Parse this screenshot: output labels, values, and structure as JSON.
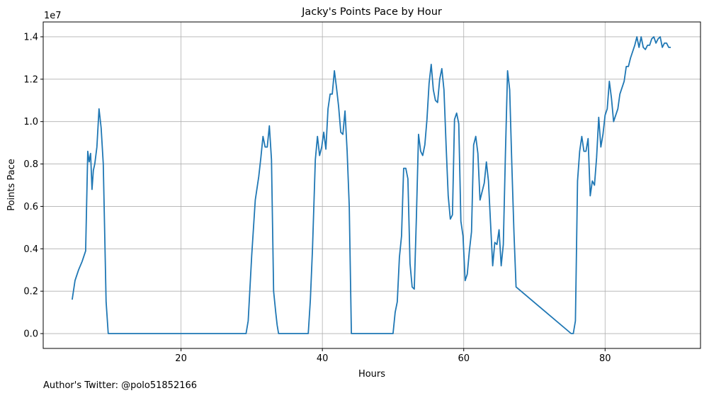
{
  "chart_data": {
    "type": "line",
    "title": "Jacky's Points Pace by Hour",
    "xlabel": "Hours",
    "ylabel": "Points Pace",
    "y_scale_label": "1e7",
    "xlim": [
      0.5,
      93.5
    ],
    "ylim": [
      -0.07,
      1.47
    ],
    "x_ticks": [
      20,
      40,
      60,
      80
    ],
    "x_tick_labels": [
      "20",
      "40",
      "60",
      "80"
    ],
    "y_ticks": [
      0.0,
      0.2,
      0.4,
      0.6,
      0.8,
      1.0,
      1.2,
      1.4
    ],
    "y_tick_labels": [
      "0.0",
      "0.2",
      "0.4",
      "0.6",
      "0.8",
      "1.0",
      "1.2",
      "1.4"
    ],
    "grid": true,
    "line_color": "#1f77b4",
    "series": [
      {
        "name": "",
        "x": [
          4.6,
          5.0,
          5.5,
          6.0,
          6.5,
          6.8,
          7.0,
          7.2,
          7.4,
          7.6,
          7.8,
          8.1,
          8.4,
          8.7,
          9.0,
          9.4,
          9.7,
          10.0,
          29.2,
          29.5,
          30.0,
          30.5,
          31.0,
          31.3,
          31.6,
          31.9,
          32.2,
          32.5,
          32.8,
          33.1,
          33.4,
          33.6,
          33.8,
          34.1,
          38.0,
          38.3,
          38.6,
          39.0,
          39.3,
          39.6,
          39.9,
          40.2,
          40.5,
          40.8,
          41.1,
          41.4,
          41.7,
          42.0,
          42.3,
          42.6,
          42.9,
          43.2,
          43.5,
          43.8,
          44.1,
          50.0,
          50.3,
          50.6,
          50.9,
          51.2,
          51.5,
          51.8,
          52.1,
          52.4,
          52.7,
          53.0,
          53.3,
          53.6,
          53.9,
          54.2,
          54.5,
          54.8,
          55.1,
          55.4,
          55.7,
          56.0,
          56.3,
          56.6,
          56.9,
          57.2,
          57.5,
          57.8,
          58.1,
          58.4,
          58.7,
          59.0,
          59.3,
          59.6,
          59.9,
          60.2,
          60.5,
          60.8,
          61.1,
          61.4,
          61.7,
          62.0,
          62.3,
          62.6,
          62.9,
          63.2,
          63.5,
          63.8,
          64.1,
          64.4,
          64.7,
          65.0,
          65.3,
          65.6,
          65.9,
          66.2,
          66.5,
          66.8,
          67.1,
          67.4,
          75.2,
          75.5,
          75.8,
          76.1,
          76.4,
          76.7,
          77.0,
          77.3,
          77.6,
          77.9,
          78.2,
          78.5,
          78.8,
          79.1,
          79.4,
          79.7,
          80.0,
          80.3,
          80.6,
          80.9,
          81.2,
          81.5,
          81.8,
          82.1,
          82.4,
          82.7,
          83.0,
          83.3,
          83.6,
          83.9,
          84.2,
          84.5,
          84.8,
          85.1,
          85.4,
          85.7,
          86.0,
          86.3,
          86.6,
          86.9,
          87.2,
          87.5,
          87.8,
          88.1,
          88.4,
          88.7,
          89.0,
          89.3
        ],
        "y": [
          0.16,
          0.25,
          0.3,
          0.34,
          0.39,
          0.86,
          0.81,
          0.85,
          0.68,
          0.77,
          0.8,
          0.88,
          1.06,
          0.97,
          0.8,
          0.15,
          0.0,
          0.0,
          0.0,
          0.06,
          0.37,
          0.63,
          0.74,
          0.83,
          0.93,
          0.88,
          0.88,
          0.98,
          0.82,
          0.2,
          0.1,
          0.04,
          0.0,
          0.0,
          0.0,
          0.16,
          0.4,
          0.82,
          0.93,
          0.84,
          0.88,
          0.95,
          0.87,
          1.06,
          1.13,
          1.13,
          1.24,
          1.16,
          1.07,
          0.95,
          0.94,
          1.05,
          0.86,
          0.6,
          0.0,
          0.0,
          0.1,
          0.15,
          0.36,
          0.46,
          0.78,
          0.78,
          0.73,
          0.33,
          0.22,
          0.21,
          0.55,
          0.94,
          0.86,
          0.84,
          0.89,
          1.01,
          1.18,
          1.27,
          1.15,
          1.1,
          1.09,
          1.2,
          1.25,
          1.15,
          0.89,
          0.65,
          0.54,
          0.56,
          1.01,
          1.04,
          0.99,
          0.53,
          0.46,
          0.25,
          0.28,
          0.39,
          0.48,
          0.89,
          0.93,
          0.85,
          0.63,
          0.67,
          0.71,
          0.81,
          0.72,
          0.52,
          0.32,
          0.43,
          0.42,
          0.49,
          0.32,
          0.42,
          0.85,
          1.24,
          1.15,
          0.8,
          0.48,
          0.22,
          0.0,
          0.0,
          0.06,
          0.72,
          0.86,
          0.93,
          0.86,
          0.86,
          0.92,
          0.65,
          0.72,
          0.7,
          0.83,
          1.02,
          0.88,
          0.94,
          1.03,
          1.06,
          1.19,
          1.11,
          1.0,
          1.03,
          1.06,
          1.13,
          1.16,
          1.19,
          1.26,
          1.26,
          1.3,
          1.33,
          1.36,
          1.4,
          1.35,
          1.4,
          1.35,
          1.34,
          1.36,
          1.36,
          1.39,
          1.4,
          1.37,
          1.39,
          1.4,
          1.35,
          1.37,
          1.37,
          1.35,
          1.35
        ]
      }
    ]
  },
  "footer": {
    "credit": "Author's Twitter: @polo51852166"
  }
}
